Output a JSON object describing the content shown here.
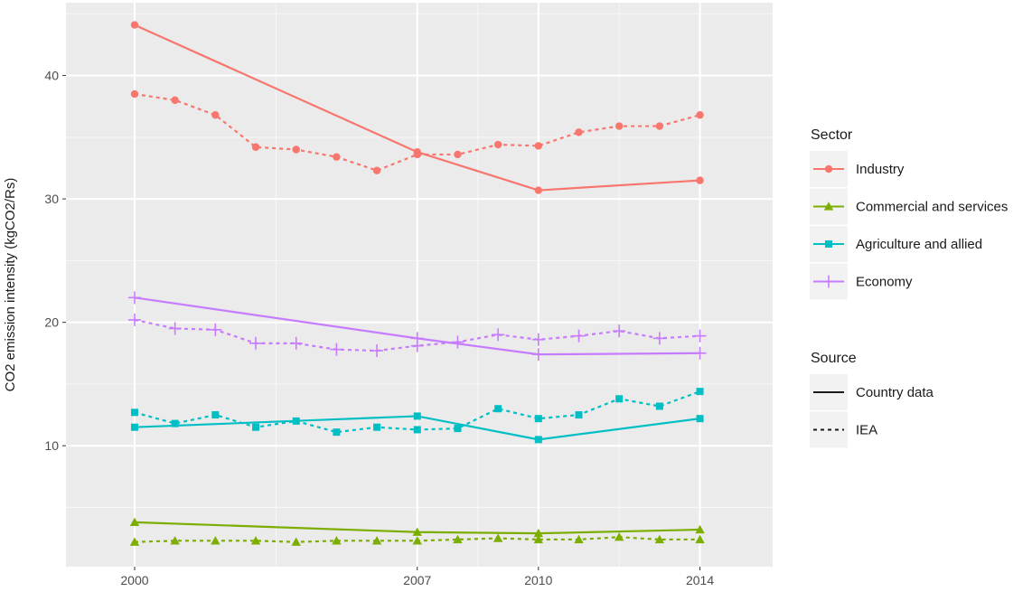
{
  "chart_data": {
    "type": "line",
    "ylabel": "CO2 emission intensity (kgCO2/Rs)",
    "xlabel": "",
    "x_ticks": [
      2000,
      2007,
      2010,
      2014
    ],
    "y_ticks": [
      10,
      20,
      30,
      40
    ],
    "xlim": [
      1998.3,
      2015.8
    ],
    "ylim": [
      0.2,
      45.9
    ],
    "grid": true,
    "legend_position": "right",
    "sector_legend_title": "Sector",
    "source_legend_title": "Source",
    "sectors": [
      {
        "name": "Industry",
        "color": "#F8766D",
        "marker": "circle"
      },
      {
        "name": "Commercial and services",
        "color": "#7CAE00",
        "marker": "triangle"
      },
      {
        "name": "Agriculture and allied",
        "color": "#00BFC4",
        "marker": "square"
      },
      {
        "name": "Economy",
        "color": "#C77CFF",
        "marker": "plus"
      }
    ],
    "sources": [
      {
        "name": "Country data",
        "dash": "solid"
      },
      {
        "name": "IEA",
        "dash": "dotted"
      }
    ],
    "series": [
      {
        "sector": "Industry",
        "source": "Country data",
        "x": [
          2000,
          2007,
          2010,
          2014
        ],
        "y": [
          44.1,
          33.8,
          30.7,
          31.5
        ]
      },
      {
        "sector": "Industry",
        "source": "IEA",
        "x": [
          2000,
          2001,
          2002,
          2003,
          2004,
          2005,
          2006,
          2007,
          2008,
          2009,
          2010,
          2011,
          2012,
          2013,
          2014
        ],
        "y": [
          38.5,
          38.0,
          36.8,
          34.2,
          34.0,
          33.4,
          32.3,
          33.6,
          33.6,
          34.4,
          34.3,
          35.4,
          35.9,
          35.9,
          36.8
        ]
      },
      {
        "sector": "Commercial and services",
        "source": "Country data",
        "x": [
          2000,
          2007,
          2010,
          2014
        ],
        "y": [
          3.8,
          3.0,
          2.9,
          3.2
        ]
      },
      {
        "sector": "Commercial and services",
        "source": "IEA",
        "x": [
          2000,
          2001,
          2002,
          2003,
          2004,
          2005,
          2006,
          2007,
          2008,
          2009,
          2010,
          2011,
          2012,
          2013,
          2014
        ],
        "y": [
          2.2,
          2.3,
          2.3,
          2.3,
          2.2,
          2.3,
          2.3,
          2.3,
          2.4,
          2.5,
          2.4,
          2.4,
          2.6,
          2.4,
          2.4
        ]
      },
      {
        "sector": "Agriculture and allied",
        "source": "Country data",
        "x": [
          2000,
          2007,
          2010,
          2014
        ],
        "y": [
          11.5,
          12.4,
          10.5,
          12.2
        ]
      },
      {
        "sector": "Agriculture and allied",
        "source": "IEA",
        "x": [
          2000,
          2001,
          2002,
          2003,
          2004,
          2005,
          2006,
          2007,
          2008,
          2009,
          2010,
          2011,
          2012,
          2013,
          2014
        ],
        "y": [
          12.7,
          11.8,
          12.5,
          11.5,
          12.0,
          11.1,
          11.5,
          11.3,
          11.4,
          13.0,
          12.2,
          12.5,
          13.8,
          13.2,
          14.4
        ]
      },
      {
        "sector": "Economy",
        "source": "Country data",
        "x": [
          2000,
          2007,
          2010,
          2014
        ],
        "y": [
          22.0,
          18.7,
          17.4,
          17.5
        ]
      },
      {
        "sector": "Economy",
        "source": "IEA",
        "x": [
          2000,
          2001,
          2002,
          2003,
          2004,
          2005,
          2006,
          2007,
          2008,
          2009,
          2010,
          2011,
          2012,
          2013,
          2014
        ],
        "y": [
          20.2,
          19.5,
          19.4,
          18.3,
          18.3,
          17.8,
          17.7,
          18.1,
          18.4,
          19.0,
          18.6,
          18.9,
          19.3,
          18.7,
          18.9
        ]
      }
    ]
  }
}
